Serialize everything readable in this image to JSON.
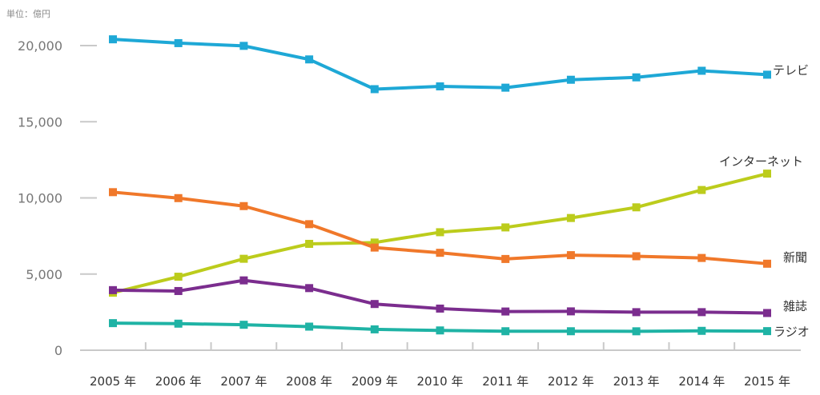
{
  "unit_label": "単位：億円",
  "chart_data": {
    "type": "line",
    "ylabel": "単位：億円",
    "ylim": [
      0,
      20000
    ],
    "yticks": [
      0,
      5000,
      10000,
      15000,
      20000
    ],
    "ytick_labels": [
      "0",
      "5,000",
      "10,000",
      "15,000",
      "20,000"
    ],
    "categories": [
      "2005 年",
      "2006 年",
      "2007 年",
      "2008 年",
      "2009 年",
      "2010 年",
      "2011 年",
      "2012 年",
      "2013 年",
      "2014 年",
      "2015 年"
    ],
    "series": [
      {
        "name": "テレビ",
        "color": "#1ea8d6",
        "values": [
          20411,
          20161,
          19981,
          19092,
          17139,
          17321,
          17237,
          17757,
          17913,
          18347,
          18088
        ]
      },
      {
        "name": "インターネット",
        "color": "#bccc1c",
        "values": [
          3777,
          4826,
          6003,
          6983,
          7069,
          7747,
          8062,
          8680,
          9381,
          10519,
          11594
        ]
      },
      {
        "name": "新聞",
        "color": "#f0782a",
        "values": [
          10377,
          9986,
          9462,
          8276,
          6739,
          6396,
          5990,
          6242,
          6170,
          6057,
          5679
        ]
      },
      {
        "name": "雑誌",
        "color": "#7b2d8e",
        "values": [
          3945,
          3887,
          4585,
          4078,
          3034,
          2733,
          2542,
          2551,
          2499,
          2500,
          2443
        ]
      },
      {
        "name": "ラジオ",
        "color": "#1fb3a5",
        "values": [
          1778,
          1744,
          1671,
          1549,
          1370,
          1299,
          1247,
          1246,
          1243,
          1272,
          1254
        ]
      }
    ]
  }
}
